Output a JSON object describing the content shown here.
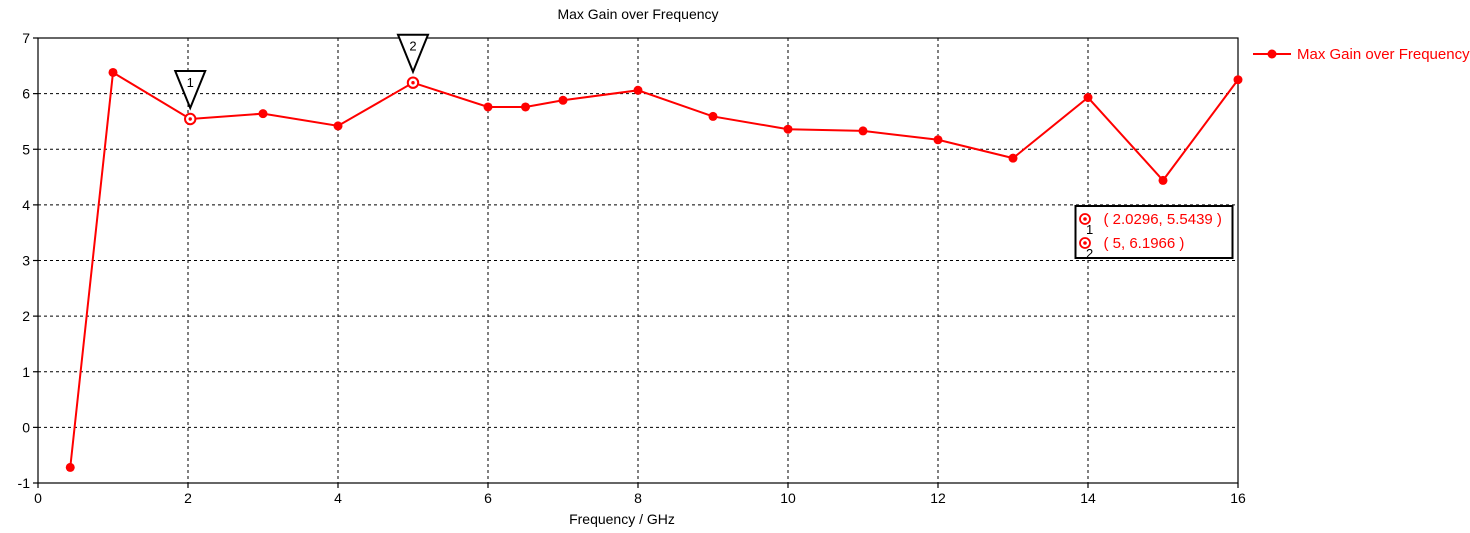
{
  "accent_color": "#ff0000",
  "text_color": "#000000",
  "background_color": "#ffffff",
  "chart_data": {
    "type": "line",
    "title": "Max Gain over Frequency",
    "xlabel": "Frequency / GHz",
    "ylabel": "",
    "xlim": [
      0,
      16
    ],
    "ylim": [
      -1,
      7
    ],
    "xticks": [
      0,
      2,
      4,
      6,
      8,
      10,
      12,
      14,
      16
    ],
    "yticks": [
      -1,
      0,
      1,
      2,
      3,
      4,
      5,
      6,
      7
    ],
    "grid": "dashed",
    "legend": {
      "position": "top-right",
      "entries": [
        {
          "label": "Max Gain over Frequency",
          "color": "#ff0000",
          "marker": "filled-circle"
        }
      ]
    },
    "series": [
      {
        "name": "Max Gain over Frequency",
        "color": "#ff0000",
        "points": [
          [
            0.43,
            -0.72
          ],
          [
            1,
            6.38
          ],
          [
            2.0296,
            5.5439
          ],
          [
            3,
            5.64
          ],
          [
            4,
            5.42
          ],
          [
            5,
            6.1966
          ],
          [
            6,
            5.76
          ],
          [
            6.5,
            5.76
          ],
          [
            7,
            5.88
          ],
          [
            8,
            6.06
          ],
          [
            9,
            5.59
          ],
          [
            10,
            5.36
          ],
          [
            11,
            5.33
          ],
          [
            12,
            5.17
          ],
          [
            13,
            4.84
          ],
          [
            14,
            5.93
          ],
          [
            15,
            4.44
          ],
          [
            16,
            6.25
          ]
        ]
      }
    ],
    "markers": [
      {
        "id": "1",
        "x": 2.0296,
        "y": 5.5439,
        "label": "( 2.0296, 5.5439 )"
      },
      {
        "id": "2",
        "x": 5,
        "y": 6.1966,
        "label": "( 5, 6.1966 )"
      }
    ]
  }
}
